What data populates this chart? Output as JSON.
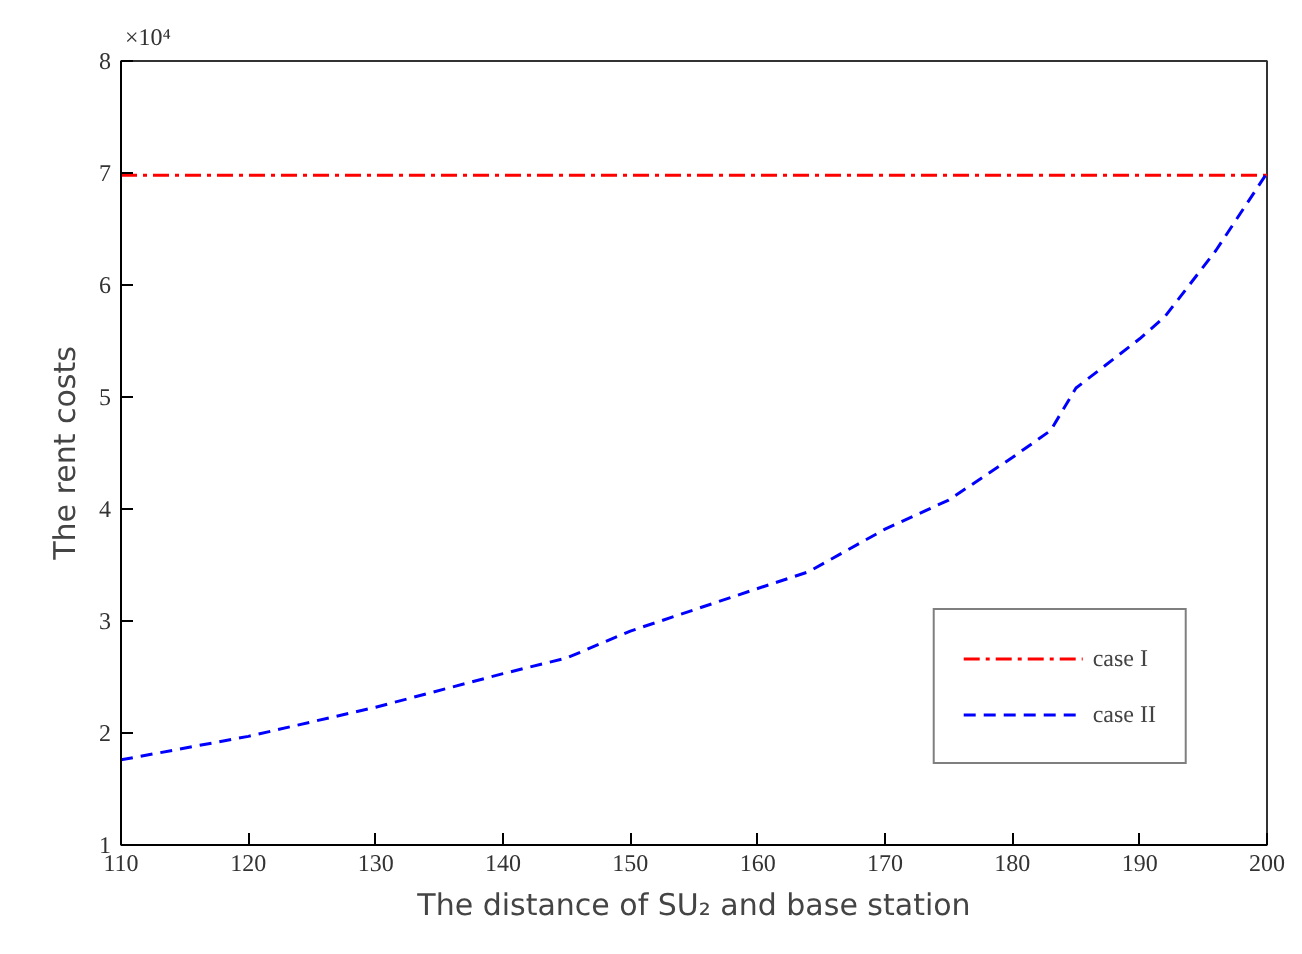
{
  "chart_data": {
    "type": "line",
    "xlabel": "The distance of SU₂ and base station",
    "ylabel": "The rent costs",
    "annotations": [
      "×10⁴"
    ],
    "xlim": [
      110,
      200
    ],
    "ylim": [
      1,
      8
    ],
    "xticks": [
      110,
      120,
      130,
      140,
      150,
      160,
      170,
      180,
      190,
      200
    ],
    "yticks": [
      1,
      2,
      3,
      4,
      5,
      6,
      7,
      8
    ],
    "grid": false,
    "legend": "bottom right",
    "marker": "none",
    "series": [
      {
        "name": "case I",
        "color": "#ff0000",
        "line_style": "dashdot",
        "x": [
          110,
          200
        ],
        "values": [
          6.98,
          6.98
        ]
      },
      {
        "name": "case II",
        "color": "#0000ff",
        "line_style": "dashed",
        "x": [
          110,
          120,
          130,
          140,
          145,
          150,
          160,
          164,
          170,
          175,
          180,
          183,
          185,
          190,
          192,
          196,
          200
        ],
        "values": [
          1.76,
          1.97,
          2.23,
          2.53,
          2.67,
          2.91,
          3.29,
          3.44,
          3.82,
          4.08,
          4.46,
          4.7,
          5.08,
          5.52,
          5.72,
          6.31,
          7.0
        ]
      }
    ]
  }
}
